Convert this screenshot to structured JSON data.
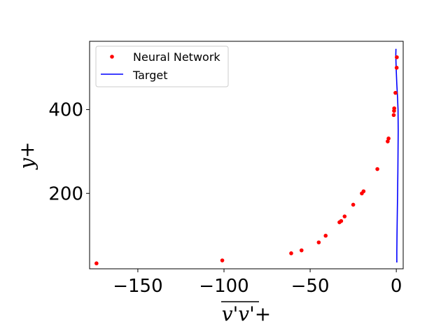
{
  "chart_data": {
    "type": "scatter",
    "xlabel": "v'v'+",
    "ylabel": "y+",
    "xlim": [
      -178,
      4
    ],
    "ylim": [
      20,
      563
    ],
    "xticks": [
      -150,
      -100,
      -50,
      0
    ],
    "xtick_labels": [
      "−150",
      "−100",
      "−50",
      "0"
    ],
    "yticks": [
      200,
      400
    ],
    "ytick_labels": [
      "200",
      "400"
    ],
    "grid": false,
    "legend": "upper-left",
    "series": [
      {
        "name": "Neural Network",
        "kind": "scatter",
        "color": "#ff0000",
        "x": [
          -174,
          -101,
          -61,
          -55,
          -45,
          -41,
          -33,
          -32,
          -30,
          -25,
          -20,
          -19,
          -11,
          -5,
          -4.5,
          -1.5,
          -1.3,
          -1.2,
          -0.5,
          0.2,
          0.3
        ],
        "y": [
          33,
          40,
          57,
          64,
          83,
          99,
          131,
          134,
          145,
          173,
          200,
          205,
          258,
          324,
          331,
          387,
          397,
          403,
          440,
          500,
          525
        ]
      },
      {
        "name": "Target",
        "kind": "line",
        "color": "#0000ff",
        "x": [
          0.3,
          0.3,
          0.35,
          0.4,
          0.5,
          0.6,
          0.75,
          0.9,
          1.0,
          1.1,
          1.0,
          0.7,
          0.3,
          -0.1,
          -0.3,
          -0.2
        ],
        "y": [
          35,
          60,
          80,
          100,
          130,
          160,
          200,
          250,
          300,
          350,
          400,
          430,
          460,
          500,
          530,
          545
        ]
      }
    ]
  }
}
